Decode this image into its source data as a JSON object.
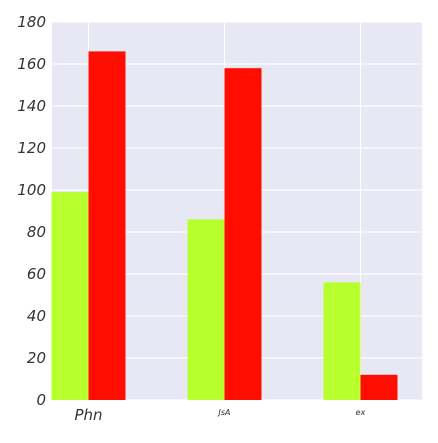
{
  "chart_data": {
    "type": "bar",
    "categories": [
      "Phn",
      "JsA",
      "ex"
    ],
    "series": [
      {
        "values": [
          99,
          86,
          56
        ]
      },
      {
        "values": [
          166,
          158,
          12
        ]
      }
    ],
    "ylim": [
      0,
      180
    ],
    "yticks": [
      0,
      20,
      40,
      60,
      80,
      100,
      120,
      140,
      160,
      180
    ],
    "grid": true,
    "colors": {
      "series": [
        "#b8ff2e",
        "#ff0d00"
      ],
      "background": "#e8e8f4",
      "grid": "#ffffff"
    }
  }
}
